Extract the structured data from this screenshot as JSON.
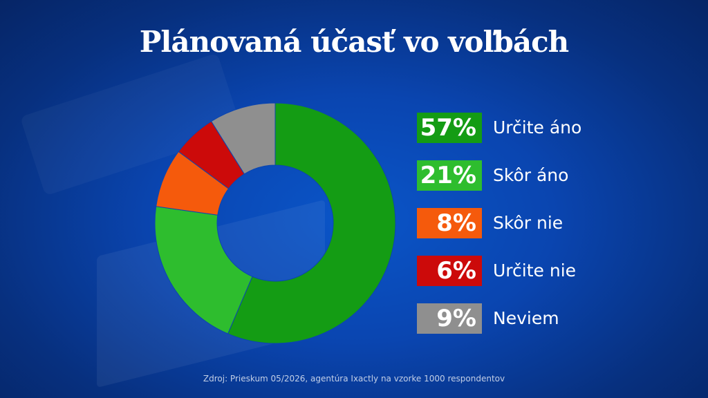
{
  "chart_data": {
    "type": "pie",
    "title": "Plánovaná účasť vo voľbách",
    "categories": [
      "Určite áno",
      "Skôr áno",
      "Skôr nie",
      "Určite nie",
      "Neviem"
    ],
    "values": [
      57,
      21,
      8,
      6,
      9
    ],
    "value_labels": [
      "57%",
      "21%",
      "8%",
      "6%",
      "9%"
    ],
    "colors": [
      "#149c14",
      "#2ebd2e",
      "#f55a0c",
      "#cc0a0a",
      "#8f8f8f"
    ],
    "donut": true,
    "legend_position": "right",
    "source": "Zdroj: Prieskum 05/2026, agentúra Ixactly na vzorke 1000 respondentov"
  }
}
